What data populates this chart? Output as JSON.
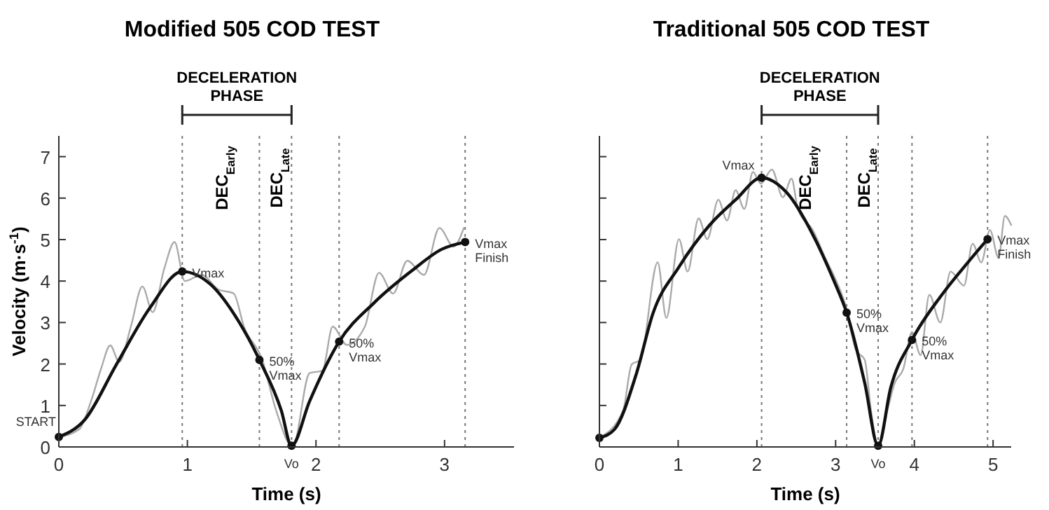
{
  "chart_data": [
    {
      "type": "line",
      "title": "Modified 505 COD TEST",
      "xlabel": "Time (s)",
      "ylabel": "Velocity (m·s$^{-1}$)",
      "xlim": [
        0,
        3.54
      ],
      "xticks": [
        0,
        1,
        2,
        3
      ],
      "ylim": [
        0,
        7.5
      ],
      "yticks": [
        0,
        1,
        2,
        3,
        4,
        5,
        6,
        7
      ],
      "grid": false,
      "line_style": "solid",
      "series": [
        {
          "type": "line",
          "color": "#aaaaaa",
          "marker": "none",
          "x": [
            0,
            0.16,
            0.25,
            0.33,
            0.4,
            0.47,
            0.56,
            0.65,
            0.73,
            0.82,
            0.9,
            0.98,
            1.11,
            1.24,
            1.36,
            1.44,
            1.58,
            1.69,
            1.82,
            1.95,
            2.05,
            2.13,
            2.24,
            2.38,
            2.49,
            2.6,
            2.71,
            2.84,
            2.96,
            3.07,
            3.15
          ],
          "values": [
            0.24,
            0.43,
            1.1,
            1.9,
            2.45,
            2.05,
            2.9,
            3.87,
            3.25,
            4.3,
            4.94,
            4.0,
            4.15,
            3.8,
            3.7,
            2.9,
            2.12,
            0.88,
            0,
            1.78,
            1.84,
            2.9,
            2.46,
            2.9,
            4.2,
            3.7,
            4.49,
            4.15,
            5.28,
            4.83,
            5.28
          ]
        },
        {
          "type": "line",
          "color": "#111111",
          "marker": "none",
          "x": [
            0,
            0.2,
            0.45,
            0.71,
            0.96,
            1.18,
            1.4,
            1.56,
            1.73,
            1.81,
            1.95,
            2.18,
            2.45,
            2.75,
            2.98,
            3.16
          ],
          "values": [
            0.24,
            0.65,
            2.0,
            3.36,
            4.23,
            3.92,
            3.02,
            2.1,
            0.88,
            0.03,
            1.1,
            2.54,
            3.47,
            4.26,
            4.77,
            4.94
          ]
        },
        {
          "type": "scatter",
          "color": "#111111",
          "marker": "circle",
          "x": [
            0,
            0.96,
            1.56,
            1.81,
            2.18,
            3.16
          ],
          "values": [
            0.24,
            4.23,
            2.1,
            0.03,
            2.54,
            4.94
          ]
        }
      ],
      "ref_lines": [
        {
          "axis": "x",
          "value": 0.96,
          "color": "#777777",
          "line_style": "dotted"
        },
        {
          "axis": "x",
          "value": 1.56,
          "color": "#777777",
          "line_style": "dotted"
        },
        {
          "axis": "x",
          "value": 1.81,
          "color": "#777777",
          "line_style": "dotted"
        },
        {
          "axis": "x",
          "value": 2.18,
          "color": "#777777",
          "line_style": "dotted"
        },
        {
          "axis": "x",
          "value": 3.16,
          "color": "#777777",
          "line_style": "dotted"
        }
      ],
      "annotations": [
        {
          "text": "START",
          "x": 0,
          "y": 0.24
        },
        {
          "text": "Vmax",
          "x": 0.96,
          "y": 4.23
        },
        {
          "text": "50%\nVmax",
          "x": 1.56,
          "y": 2.1
        },
        {
          "text": "Vo",
          "x": 1.81,
          "y": 0.03
        },
        {
          "text": "50%\nVmax",
          "x": 2.18,
          "y": 2.54
        },
        {
          "text": "Vmax\nFinish",
          "x": 3.16,
          "y": 4.94
        },
        "DECELERATION\nPHASE",
        "DEC$_{Early}$",
        "DEC$_{Late}$"
      ]
    },
    {
      "type": "line",
      "title": "Traditional 505 COD TEST",
      "xlabel": "Time (s)",
      "xlim": [
        0,
        5.23
      ],
      "xticks": [
        0,
        1,
        2,
        3,
        4,
        5
      ],
      "ylim": [
        0,
        7.5
      ],
      "yticks": [
        0,
        1,
        2,
        3,
        4,
        5,
        6,
        7
      ],
      "tick_labels": "x",
      "grid": false,
      "line_style": "solid",
      "series": [
        {
          "type": "line",
          "color": "#aaaaaa",
          "marker": "none",
          "x": [
            0,
            0.3,
            0.41,
            0.52,
            0.74,
            0.85,
            1.01,
            1.12,
            1.26,
            1.37,
            1.51,
            1.62,
            1.73,
            1.84,
            1.95,
            2.05,
            2.19,
            2.33,
            2.44,
            2.52,
            2.71,
            2.88,
            2.98,
            3.12,
            3.26,
            3.37,
            3.45,
            3.54,
            3.67,
            3.75,
            3.86,
            3.97,
            4.08,
            4.19,
            4.33,
            4.46,
            4.63,
            4.74,
            4.85,
            4.96,
            5.07,
            5.15,
            5.23
          ],
          "values": [
            0.22,
            0.87,
            1.99,
            2.1,
            4.45,
            3.11,
            5.01,
            4.23,
            5.51,
            5.01,
            5.96,
            5.46,
            6.19,
            5.74,
            6.63,
            6.35,
            6.69,
            6.02,
            6.47,
            5.74,
            5.23,
            4.51,
            4.12,
            3.45,
            2.33,
            2.1,
            0.87,
            0,
            0.98,
            1.54,
            1.88,
            2.77,
            2.21,
            3.67,
            3.0,
            4.23,
            3.89,
            4.9,
            4.45,
            5.23,
            4.56,
            5.57,
            5.35
          ]
        },
        {
          "type": "line",
          "color": "#111111",
          "marker": "none",
          "x": [
            0,
            0.19,
            0.47,
            0.68,
            1.01,
            1.4,
            1.73,
            2.06,
            2.38,
            2.71,
            2.98,
            3.14,
            3.37,
            3.54,
            3.7,
            3.97,
            4.35,
            4.68,
            4.93
          ],
          "values": [
            0.22,
            0.42,
            1.77,
            3.22,
            4.34,
            5.35,
            5.96,
            6.49,
            6.13,
            5.12,
            4.0,
            3.24,
            1.54,
            0.03,
            1.43,
            2.58,
            3.67,
            4.45,
            5.01
          ]
        },
        {
          "type": "scatter",
          "color": "#111111",
          "marker": "circle",
          "x": [
            0,
            2.06,
            3.14,
            3.54,
            3.97,
            4.93
          ],
          "values": [
            0.22,
            6.49,
            3.24,
            0.03,
            2.58,
            5.01
          ]
        }
      ],
      "ref_lines": [
        {
          "axis": "x",
          "value": 2.06,
          "color": "#777777",
          "line_style": "dotted"
        },
        {
          "axis": "x",
          "value": 3.14,
          "color": "#777777",
          "line_style": "dotted"
        },
        {
          "axis": "x",
          "value": 3.54,
          "color": "#777777",
          "line_style": "dotted"
        },
        {
          "axis": "x",
          "value": 3.97,
          "color": "#777777",
          "line_style": "dotted"
        },
        {
          "axis": "x",
          "value": 4.93,
          "color": "#777777",
          "line_style": "dotted"
        }
      ],
      "annotations": [
        {
          "text": "Vmax",
          "x": 2.06,
          "y": 6.49
        },
        {
          "text": "50%\nVmax",
          "x": 3.14,
          "y": 3.24
        },
        {
          "text": "Vo",
          "x": 3.54,
          "y": 0.03
        },
        {
          "text": "50%\nVmax",
          "x": 3.97,
          "y": 2.58
        },
        {
          "text": "Vmax\nFinish",
          "x": 4.93,
          "y": 5.01
        },
        "DECELERATION\nPHASE",
        "DEC$_{Early}$",
        "DEC$_{Late}$"
      ]
    }
  ]
}
